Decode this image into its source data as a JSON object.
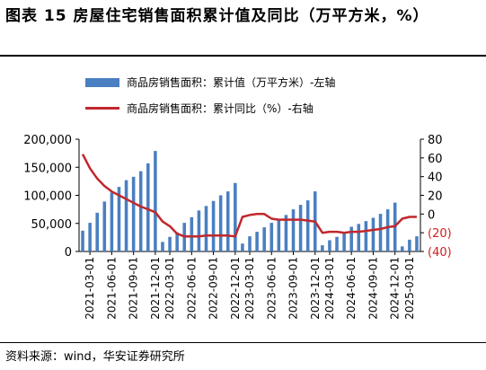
{
  "header": {
    "title": "图表 15 房屋住宅销售面积累计值及同比（万平方米，%）"
  },
  "footer": {
    "source": "资料来源：wind，华安证券研究所"
  },
  "colors": {
    "bar": "#4a7fc1",
    "line": "#c0282d",
    "negative_tick": "#d01f1f",
    "axis": "#000000"
  },
  "chart_data": {
    "type": "bar",
    "legend_position": "top-left",
    "grid": false,
    "y_axis_left": {
      "range": [
        0,
        200000
      ],
      "ticks": [
        "0",
        "50,000",
        "100,000",
        "150,000",
        "200,000"
      ]
    },
    "y_axis_right": {
      "range": [
        -40,
        80
      ],
      "ticks": [
        "(40)",
        "(20)",
        "0",
        "20",
        "40",
        "60",
        "80"
      ]
    },
    "x_tick_labels": [
      "2021-03-01",
      "2021-06-01",
      "2021-09-01",
      "2021-12-01",
      "2022-03-01",
      "2022-06-01",
      "2022-09-01",
      "2022-12-01",
      "2023-03-01",
      "2023-06-01",
      "2023-09-01",
      "2023-12-01",
      "2024-03-01",
      "2024-06-01",
      "2024-09-01",
      "2024-12-01",
      "2025-03-01"
    ],
    "categories": [
      "2021-02",
      "2021-03",
      "2021-04",
      "2021-05",
      "2021-06",
      "2021-07",
      "2021-08",
      "2021-09",
      "2021-10",
      "2021-11",
      "2021-12",
      "2022-02",
      "2022-03",
      "2022-04",
      "2022-05",
      "2022-06",
      "2022-07",
      "2022-08",
      "2022-09",
      "2022-10",
      "2022-11",
      "2022-12",
      "2023-02",
      "2023-03",
      "2023-04",
      "2023-05",
      "2023-06",
      "2023-07",
      "2023-08",
      "2023-09",
      "2023-10",
      "2023-11",
      "2023-12",
      "2024-02",
      "2024-03",
      "2024-04",
      "2024-05",
      "2024-06",
      "2024-07",
      "2024-08",
      "2024-09",
      "2024-10",
      "2024-11",
      "2024-12",
      "2025-02",
      "2025-03",
      "2025-04"
    ],
    "series": [
      {
        "name": "商品房销售面积：累计值（万平方米）-左轴",
        "axis": "left",
        "type": "bar",
        "values": [
          37000,
          51000,
          69000,
          89000,
          105000,
          115000,
          127000,
          133000,
          143000,
          157000,
          179000,
          17000,
          26000,
          34000,
          51000,
          61000,
          73000,
          81000,
          90000,
          100000,
          107000,
          122000,
          14000,
          27000,
          35000,
          43000,
          51000,
          58000,
          65000,
          75000,
          83000,
          91000,
          107000,
          11000,
          20000,
          26000,
          35000,
          44000,
          49000,
          54000,
          60000,
          67000,
          75000,
          87000,
          9000,
          21000,
          27000
        ]
      },
      {
        "name": "商品房销售面积：累计同比（%）-右轴",
        "axis": "right",
        "type": "line",
        "values": [
          64,
          49,
          38,
          30,
          24,
          20,
          16,
          12,
          8,
          5,
          2,
          -8,
          -13,
          -21,
          -24,
          -24,
          -24,
          -23,
          -23,
          -23,
          -23,
          -24,
          -3,
          -1,
          0,
          0,
          -5,
          -6,
          -6,
          -6,
          -6,
          -7,
          -8,
          -20,
          -19,
          -19,
          -20,
          -19,
          -19,
          -18,
          -17,
          -16,
          -14,
          -13,
          -5,
          -3,
          -3
        ]
      }
    ]
  }
}
